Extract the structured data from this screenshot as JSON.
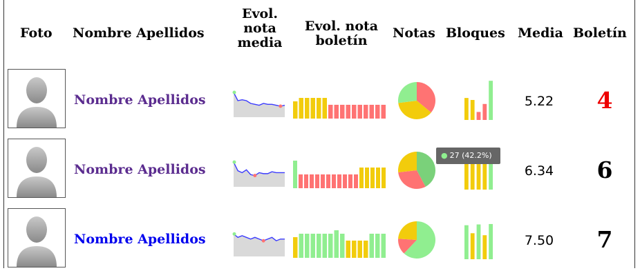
{
  "headers": {
    "foto": "Foto",
    "nombre": "Nombre Apellidos",
    "evol_media": [
      "Evol.",
      "nota",
      "media"
    ],
    "evol_boletin": [
      "Evol. nota",
      "boletín"
    ],
    "notas": "Notas",
    "bloques": "Bloques",
    "media": "Media",
    "boletin": "Boletín"
  },
  "colors": {
    "yellow": "#f2cc0c",
    "red": "#ff7373",
    "green": "#90ee90",
    "line": "#3a3aff",
    "fill": "#d9d9d9",
    "link_visited": "#5b2c8f",
    "link": "#0000ee"
  },
  "students": [
    {
      "name": "Nombre Apellidos",
      "name_color": "#5b2c8f",
      "media": "5.22",
      "boletin": "4",
      "boletin_color": "#ee0000",
      "evol_media": [
        6.6,
        5.7,
        5.8,
        5.7,
        5.4,
        5.3,
        5.2,
        5.4,
        5.3,
        5.3,
        5.2,
        5.1,
        5.2
      ],
      "evol_boletin": [
        5,
        6,
        6,
        6,
        6,
        6,
        4,
        4,
        4,
        4,
        4,
        4,
        4,
        4,
        4,
        4
      ],
      "notas": [
        {
          "label": "suspenso",
          "value": 36,
          "color": "#ff7373"
        },
        {
          "label": "aprobado",
          "value": 37,
          "color": "#f2cc0c"
        },
        {
          "label": "notable",
          "value": 27,
          "color": "#90ee90"
        }
      ],
      "bloques": [
        {
          "value": 5.5,
          "color": "#f2cc0c"
        },
        {
          "value": 5.0,
          "color": "#f2cc0c"
        },
        {
          "value": 2.0,
          "color": "#ff7373"
        },
        {
          "value": 4.0,
          "color": "#ff7373"
        },
        {
          "value": 9.8,
          "color": "#90ee90"
        }
      ]
    },
    {
      "name": "Nombre Apellidos",
      "name_color": "#5b2c8f",
      "media": "6.34",
      "boletin": "6",
      "boletin_color": "#000000",
      "evol_media": [
        7.4,
        6.5,
        6.3,
        6.6,
        6.1,
        6.0,
        6.3,
        6.2,
        6.2,
        6.4,
        6.3,
        6.3,
        6.3
      ],
      "evol_boletin": [
        8,
        4,
        4,
        4,
        4,
        4,
        4,
        4,
        4,
        4,
        4,
        4,
        6,
        6,
        6,
        6,
        6
      ],
      "notas": [
        {
          "label": "notable",
          "value": 42.2,
          "color": "#7ad17a"
        },
        {
          "label": "suspenso",
          "value": 31,
          "color": "#ff7373"
        },
        {
          "label": "aprobado",
          "value": 26.8,
          "color": "#f2cc0c"
        }
      ],
      "bloques": [
        {
          "value": 7.0,
          "color": "#f2cc0c"
        },
        {
          "value": 7.0,
          "color": "#f2cc0c"
        },
        {
          "value": 7.0,
          "color": "#f2cc0c"
        },
        {
          "value": 7.0,
          "color": "#f2cc0c"
        },
        {
          "value": 7.0,
          "color": "#90ee90"
        }
      ],
      "tooltip": "27 (42.2%)"
    },
    {
      "name": "Nombre Apellidos",
      "name_color": "#0000ee",
      "media": "7.50",
      "boletin": "7",
      "boletin_color": "#000000",
      "evol_media": [
        7.8,
        7.6,
        7.7,
        7.6,
        7.5,
        7.6,
        7.5,
        7.4,
        7.5,
        7.6,
        7.4,
        7.5,
        7.5
      ],
      "evol_boletin": [
        6,
        7,
        7,
        7,
        7,
        7,
        7,
        8,
        7,
        5,
        5,
        5,
        5,
        7,
        7,
        7
      ],
      "notas": [
        {
          "label": "notable",
          "value": 62,
          "color": "#90ee90"
        },
        {
          "label": "suspenso",
          "value": 14,
          "color": "#ff7373"
        },
        {
          "label": "aprobado",
          "value": 24,
          "color": "#f2cc0c"
        }
      ],
      "bloques": [
        {
          "value": 8.5,
          "color": "#90ee90"
        },
        {
          "value": 6.5,
          "color": "#f2cc0c"
        },
        {
          "value": 8.7,
          "color": "#90ee90"
        },
        {
          "value": 6.0,
          "color": "#f2cc0c"
        },
        {
          "value": 8.8,
          "color": "#90ee90"
        }
      ]
    }
  ]
}
